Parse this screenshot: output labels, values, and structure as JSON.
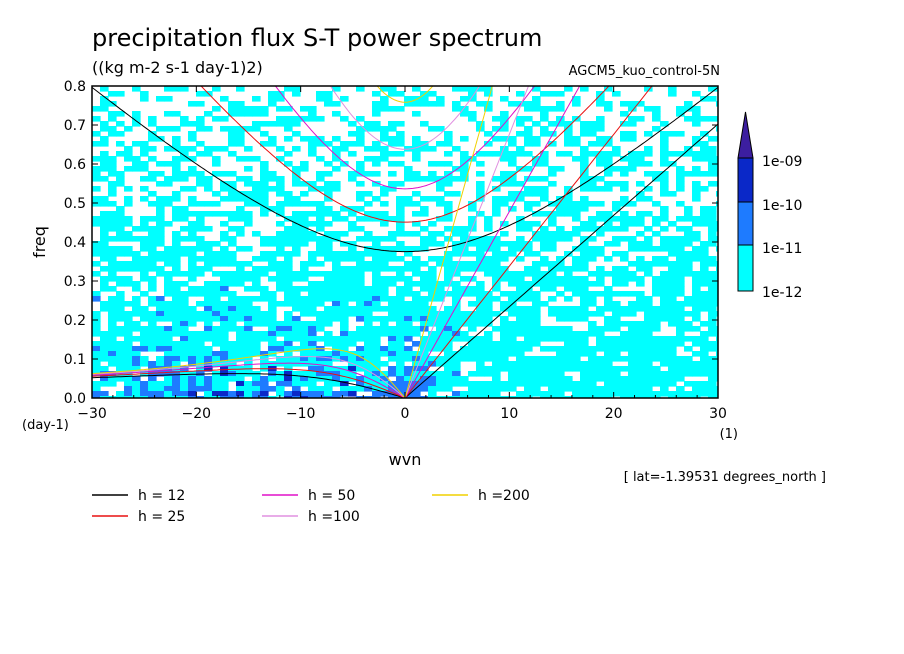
{
  "chart_data": {
    "type": "heatmap",
    "title": "precipitation flux S-T power spectrum",
    "units": "((kg m-2 s-1 day-1)2)",
    "dataset": "AGCM5_kuo_control-5N",
    "xlabel": "wvn",
    "ylabel": "freq",
    "x_unit": "(1)",
    "y_unit": "(day-1)",
    "xlim": [
      -30,
      30
    ],
    "ylim": [
      0,
      0.8
    ],
    "x_ticks": [
      -30,
      -20,
      -10,
      0,
      10,
      20,
      30
    ],
    "y_ticks": [
      0,
      0.1,
      0.2,
      0.3,
      0.4,
      0.5,
      0.6,
      0.7,
      0.8
    ],
    "note": "[ lat=-1.39531 degrees_north ]",
    "colorbar": {
      "levels": [
        "1e-12",
        "1e-11",
        "1e-10",
        "1e-09"
      ],
      "colors": [
        "#00ffff",
        "#1e7bff",
        "#0a28c8",
        "#3c1ea0"
      ]
    },
    "dispersion_curves": [
      {
        "label": "h = 12",
        "h": 12,
        "color": "#000000"
      },
      {
        "label": "h = 25",
        "h": 25,
        "color": "#e81010"
      },
      {
        "label": "h = 50",
        "h": 50,
        "color": "#e010c8"
      },
      {
        "label": "h =100",
        "h": 100,
        "color": "#e090e0"
      },
      {
        "label": "h =200",
        "h": 200,
        "color": "#f0d000"
      }
    ]
  }
}
